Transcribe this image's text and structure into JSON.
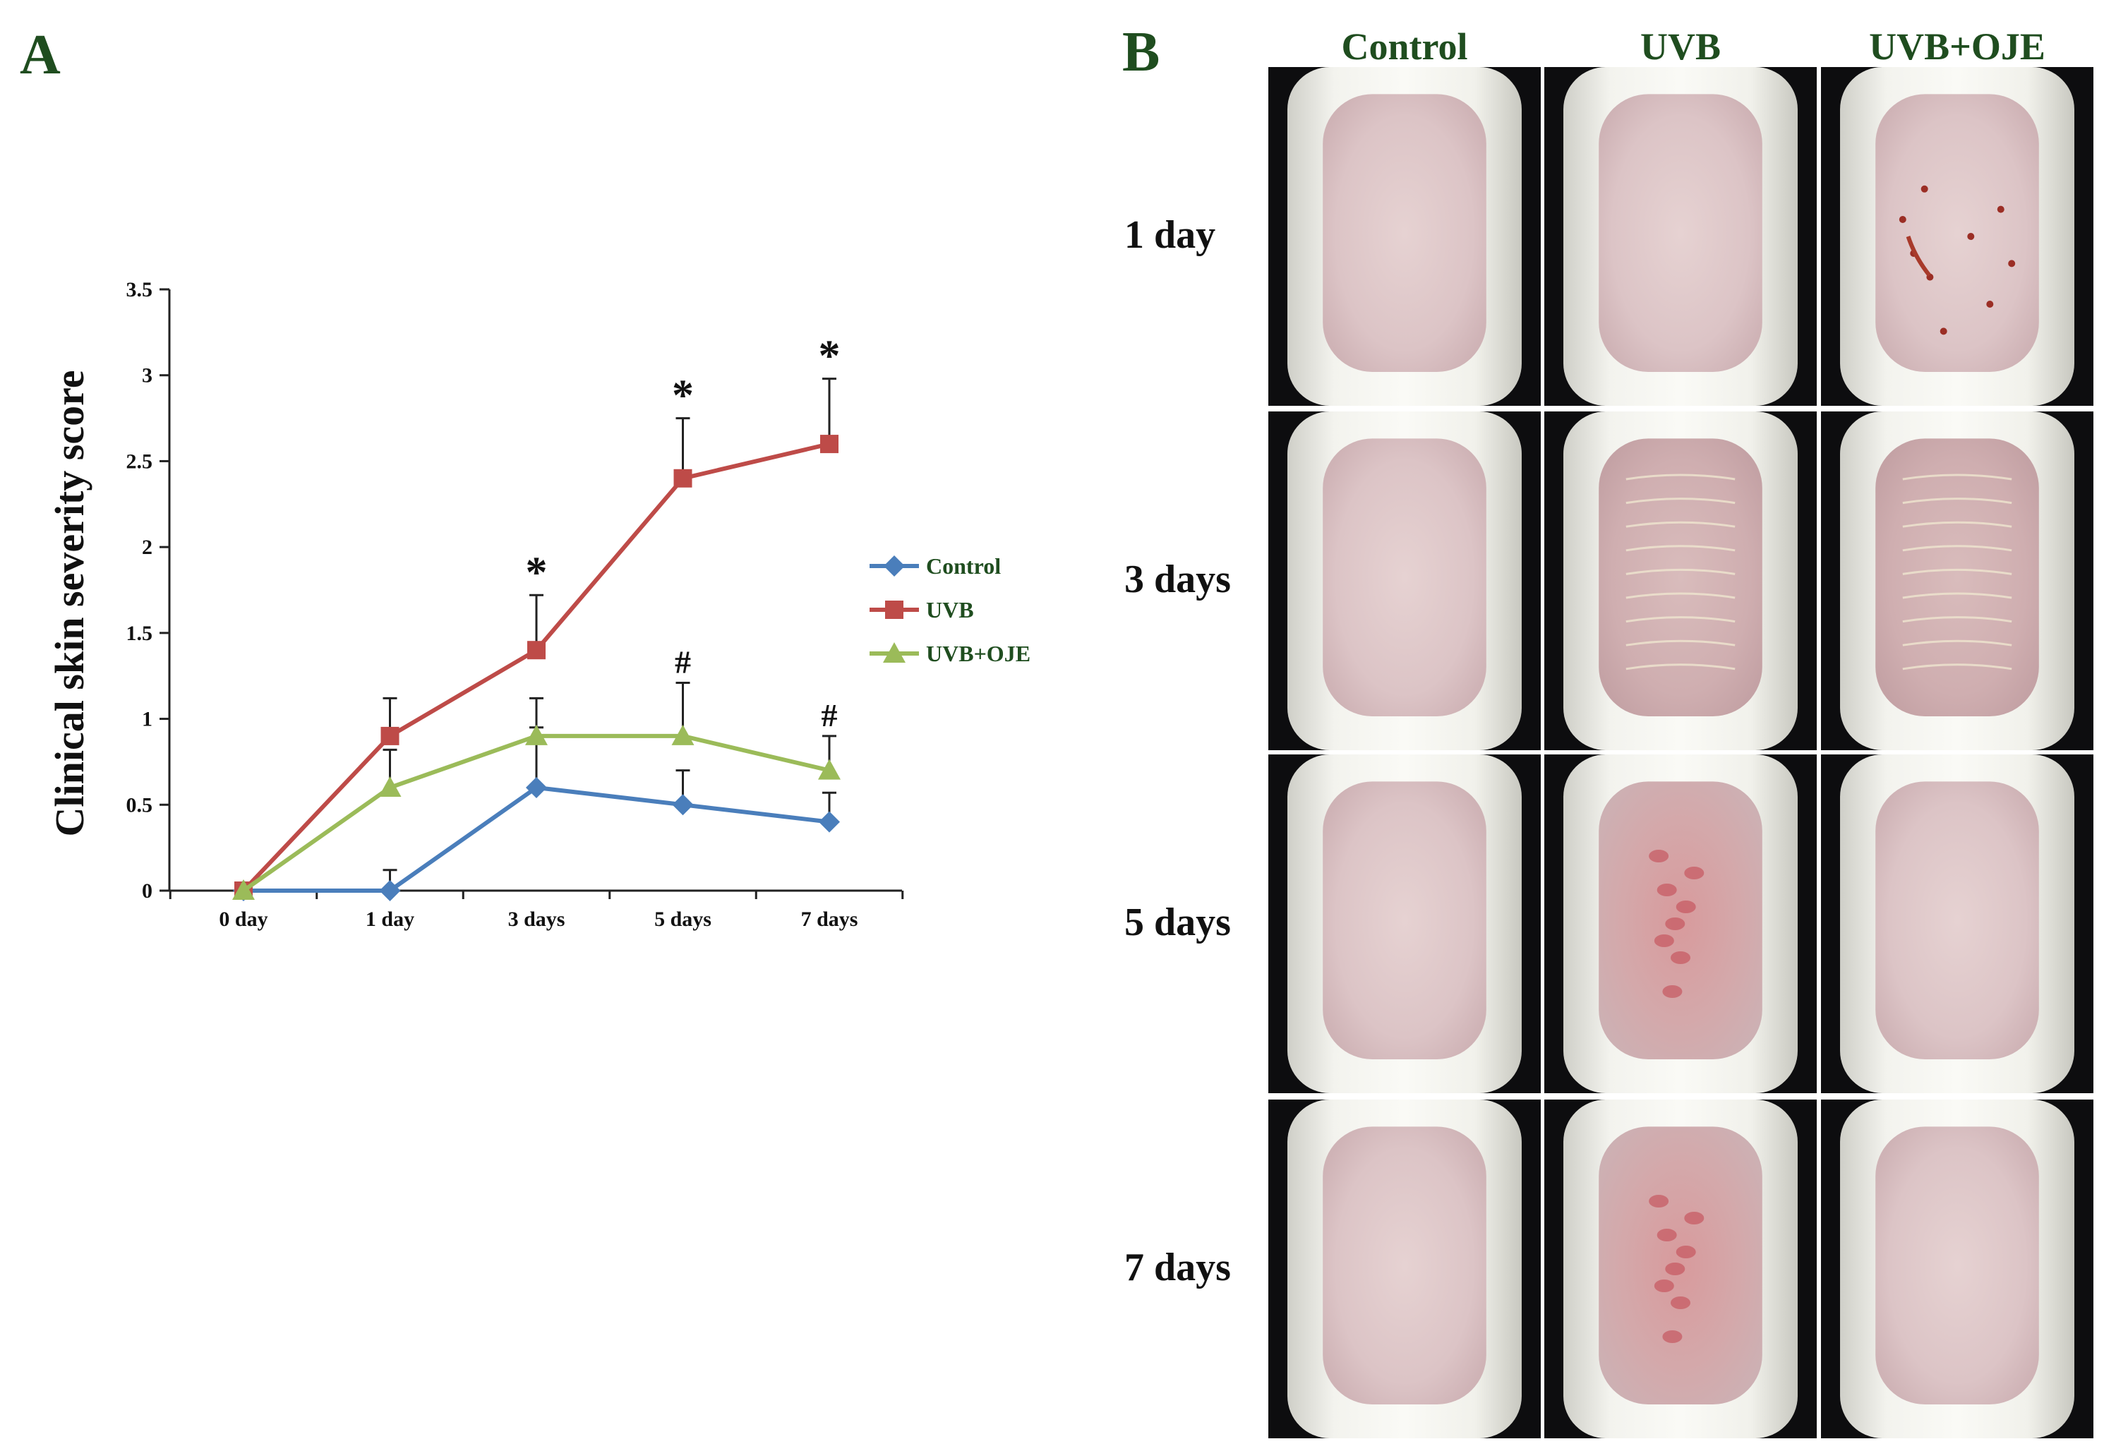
{
  "panel_a_label": "A",
  "panel_b_label": "B",
  "chart_data": {
    "type": "line",
    "title": "",
    "xlabel": "",
    "ylabel": "Clinical skin severity score",
    "categories": [
      "0 day",
      "1 day",
      "3 days",
      "5 days",
      "7 days"
    ],
    "ylim": [
      0,
      3.5
    ],
    "yticks": [
      "0",
      "0.5",
      "1",
      "1.5",
      "2",
      "2.5",
      "3",
      "3.5"
    ],
    "grid": false,
    "legend_position": "right",
    "series": [
      {
        "name": "Control",
        "color": "#4a7ebb",
        "marker": "diamond",
        "values": [
          0,
          0,
          0.6,
          0.5,
          0.4
        ],
        "errors": [
          0,
          0.12,
          0.35,
          0.2,
          0.17
        ]
      },
      {
        "name": "UVB",
        "color": "#be4b48",
        "marker": "square",
        "values": [
          0,
          0.9,
          1.4,
          2.4,
          2.6
        ],
        "errors": [
          0,
          0.22,
          0.32,
          0.35,
          0.38
        ]
      },
      {
        "name": "UVB+OJE",
        "color": "#9bbb59",
        "marker": "triangle",
        "values": [
          0,
          0.6,
          0.9,
          0.9,
          0.7
        ],
        "errors": [
          0,
          0.22,
          0.22,
          0.31,
          0.2
        ]
      }
    ],
    "annotations": [
      {
        "text": "*",
        "category": "3 days",
        "series": "UVB"
      },
      {
        "text": "*",
        "category": "5 days",
        "series": "UVB"
      },
      {
        "text": "*",
        "category": "7 days",
        "series": "UVB"
      },
      {
        "text": "#",
        "category": "5 days",
        "series": "UVB+OJE"
      },
      {
        "text": "#",
        "category": "7 days",
        "series": "UVB+OJE"
      }
    ]
  },
  "photo_grid": {
    "columns": [
      "Control",
      "UVB",
      "UVB+OJE"
    ],
    "rows": [
      "1 day",
      "3 days",
      "5 days",
      "7 days"
    ],
    "cells": [
      [
        "plain",
        "plain",
        "lesions"
      ],
      [
        "plain",
        "scaly",
        "scaly"
      ],
      [
        "plain",
        "red",
        "plain"
      ],
      [
        "plain",
        "red",
        "plain"
      ]
    ]
  }
}
